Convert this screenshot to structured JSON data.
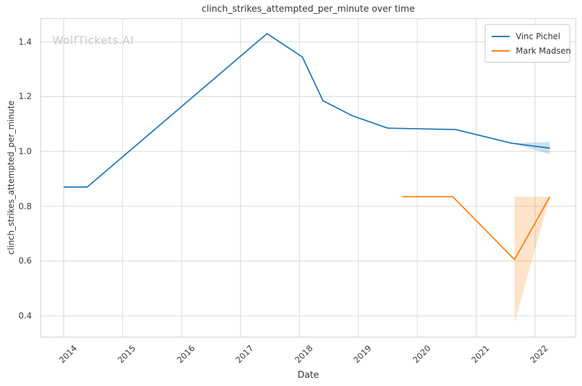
{
  "watermark": "WolfTickets.AI",
  "colors": {
    "grid": "#d8d8d8",
    "axis_border": "#cccccc",
    "series_blue": "#1f77b4",
    "series_orange": "#ff7f0e"
  },
  "chart_data": {
    "type": "line",
    "title": "clinch_strikes_attempted_per_minute over time",
    "xlabel": "Date",
    "ylabel": "clinch_strikes_attempted_per_minute",
    "grid": true,
    "legend_position": "upper right",
    "x_axis": {
      "min": 2013.61,
      "max": 2022.69,
      "ticks": [
        {
          "value": 2014,
          "label": "2014"
        },
        {
          "value": 2015,
          "label": "2015"
        },
        {
          "value": 2016,
          "label": "2016"
        },
        {
          "value": 2017,
          "label": "2017"
        },
        {
          "value": 2018,
          "label": "2018"
        },
        {
          "value": 2019,
          "label": "2019"
        },
        {
          "value": 2020,
          "label": "2020"
        },
        {
          "value": 2021,
          "label": "2021"
        },
        {
          "value": 2022,
          "label": "2022"
        }
      ]
    },
    "y_axis": {
      "min": 0.322,
      "max": 1.485,
      "ticks": [
        {
          "value": 0.4,
          "label": "0.4"
        },
        {
          "value": 0.6,
          "label": "0.6"
        },
        {
          "value": 0.8,
          "label": "0.8"
        },
        {
          "value": 1.0,
          "label": "1.0"
        },
        {
          "value": 1.2,
          "label": "1.2"
        },
        {
          "value": 1.4,
          "label": "1.4"
        }
      ]
    },
    "series": [
      {
        "name": "Vinc Pichel",
        "color": "#1f77b4",
        "points": [
          [
            2014.0,
            0.87
          ],
          [
            2014.4,
            0.87
          ],
          [
            2017.45,
            1.43
          ],
          [
            2018.05,
            1.345
          ],
          [
            2018.4,
            1.185
          ],
          [
            2018.9,
            1.13
          ],
          [
            2019.5,
            1.085
          ],
          [
            2020.65,
            1.08
          ],
          [
            2021.6,
            1.03
          ],
          [
            2022.25,
            1.012
          ]
        ],
        "band": {
          "x": [
            2021.6,
            2022.25
          ],
          "lower": [
            1.03,
            0.99
          ],
          "upper": [
            1.03,
            1.035
          ]
        }
      },
      {
        "name": "Mark Madsen",
        "color": "#ff7f0e",
        "points": [
          [
            2019.75,
            0.835
          ],
          [
            2020.6,
            0.835
          ],
          [
            2021.65,
            0.605
          ],
          [
            2022.25,
            0.835
          ]
        ],
        "band": {
          "x": [
            2021.65,
            2022.25
          ],
          "lower": [
            0.375,
            0.835
          ],
          "upper": [
            0.835,
            0.835
          ]
        }
      }
    ]
  }
}
